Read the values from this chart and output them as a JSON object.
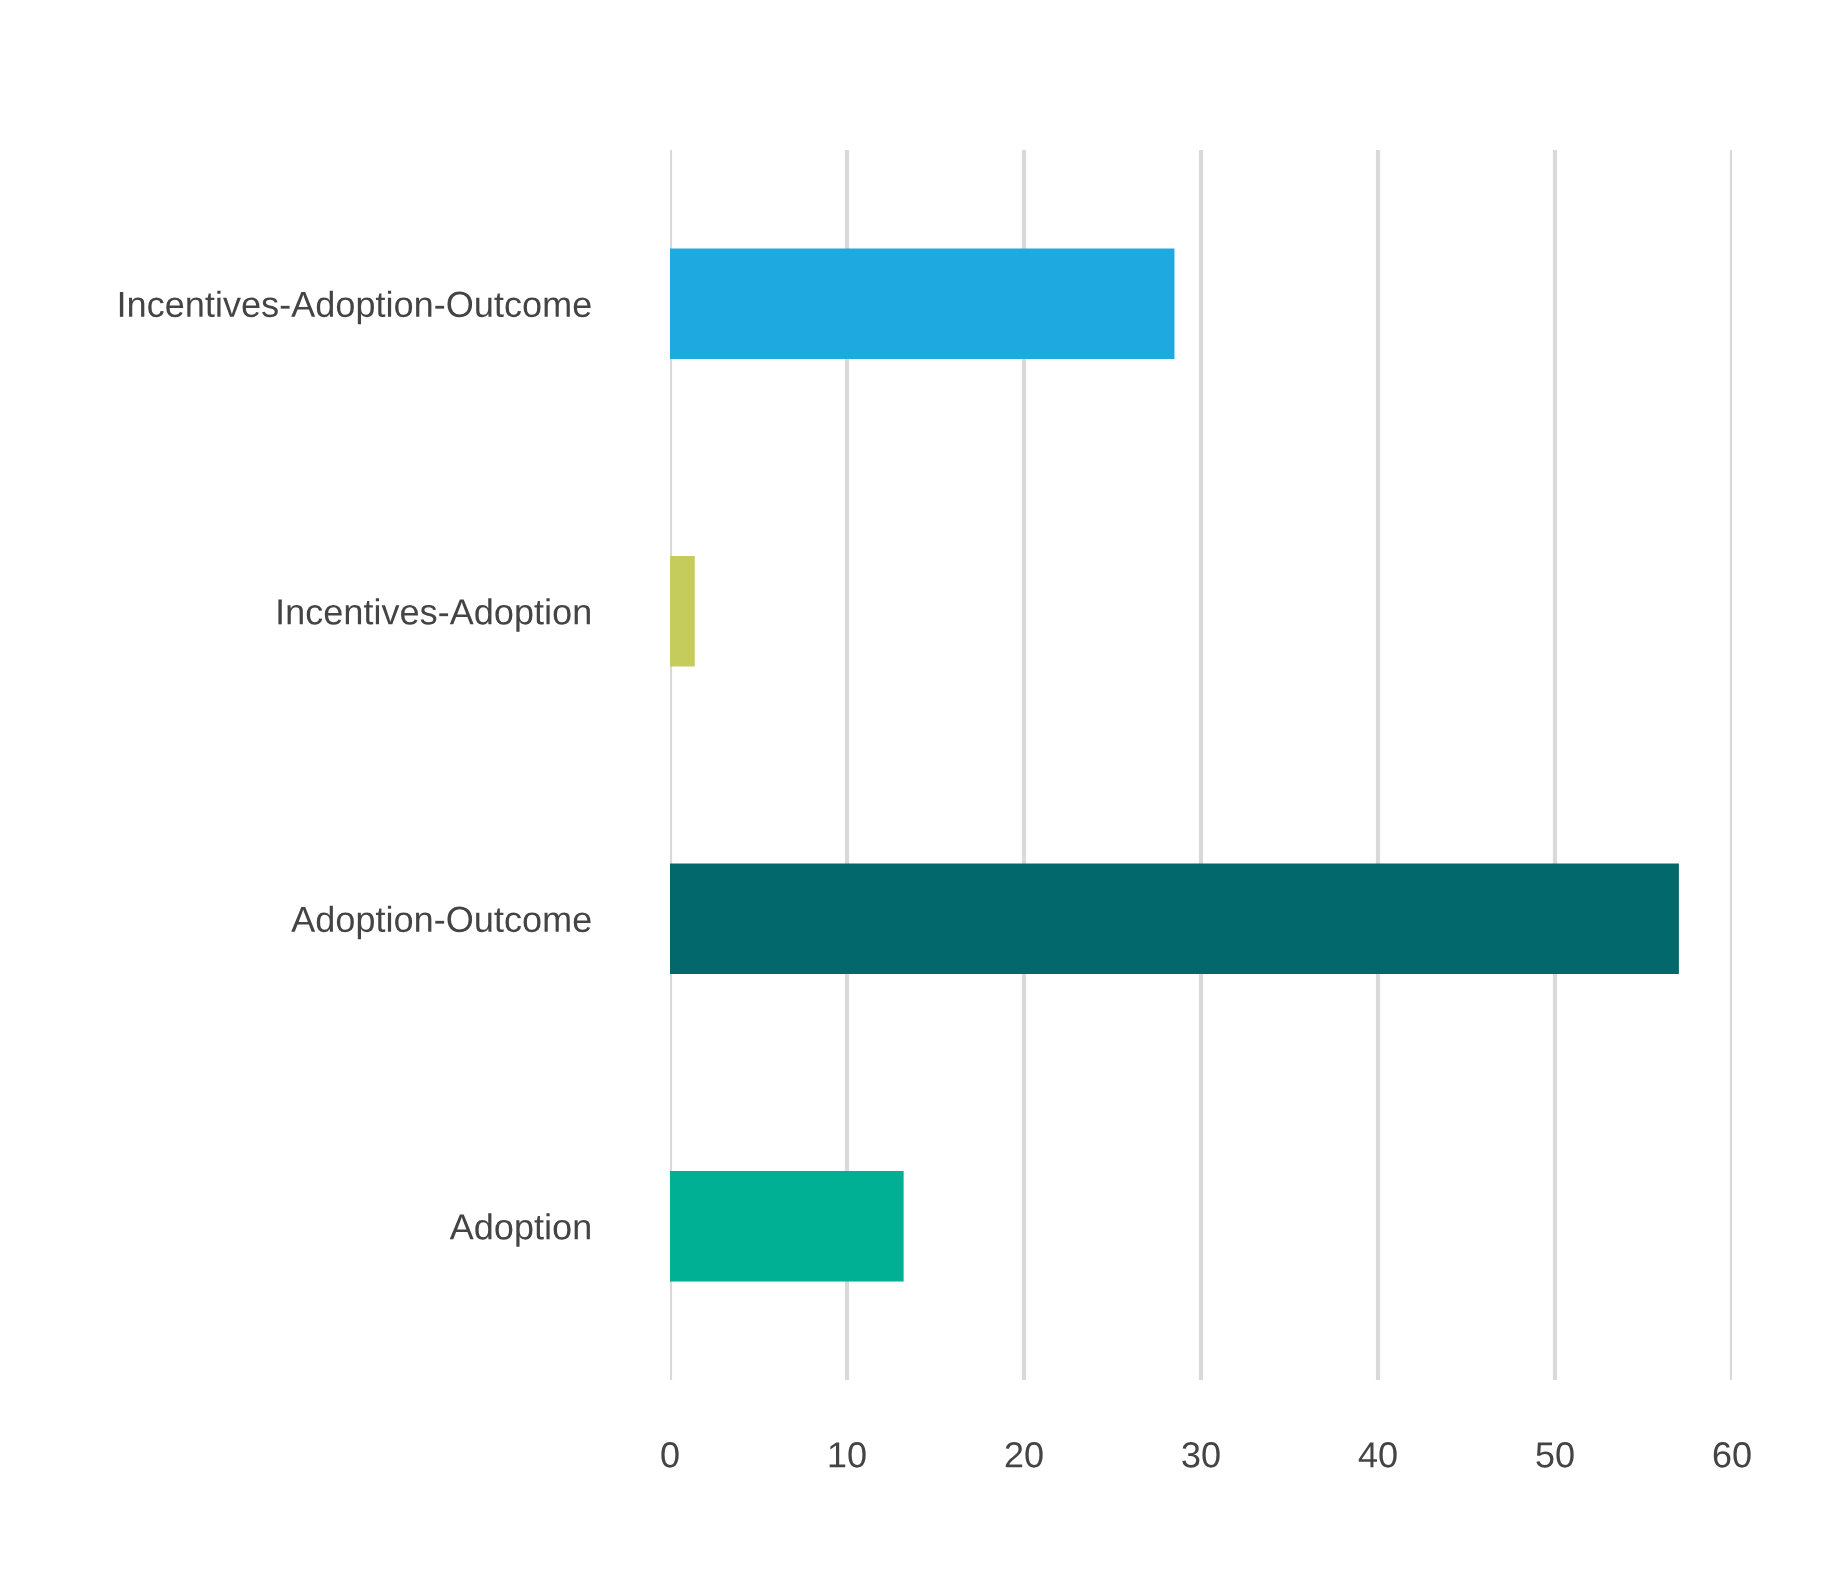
{
  "chart_data": {
    "type": "bar",
    "orientation": "horizontal",
    "categories": [
      "Incentives-Adoption-Outcome",
      "Incentives-Adoption",
      "Adoption-Outcome",
      "Adoption"
    ],
    "values": [
      28.5,
      1.4,
      57,
      13.2
    ],
    "colors": [
      "#1fa9e1",
      "#c5cc5c",
      "#02686b",
      "#00b094"
    ],
    "xlim": [
      0,
      60
    ],
    "xticks": [
      0,
      10,
      20,
      30,
      40,
      50,
      60
    ],
    "grid": "x",
    "legend": false
  }
}
